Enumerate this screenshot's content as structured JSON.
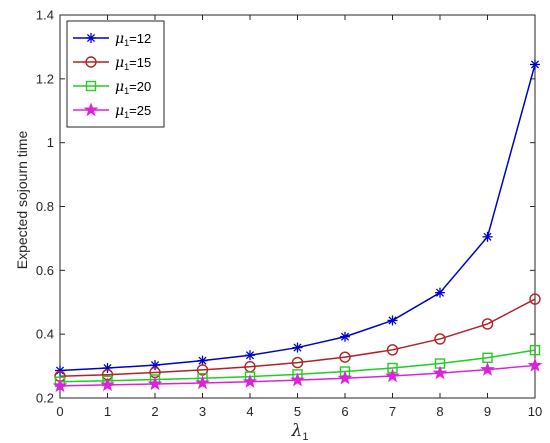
{
  "chart_data": {
    "type": "line",
    "xlabel_symbol": "λ",
    "xlabel_subscript": "1",
    "ylabel": "Expected sojourn time",
    "xlim": [
      0,
      10
    ],
    "ylim": [
      0.2,
      1.4
    ],
    "x_ticks": [
      "0",
      "1",
      "2",
      "3",
      "4",
      "5",
      "6",
      "7",
      "8",
      "9",
      "10"
    ],
    "y_ticks": [
      "0.2",
      "0.4",
      "0.6",
      "0.8",
      "1",
      "1.2",
      "1.4"
    ],
    "grid": false,
    "legend_position": "top-left",
    "x": [
      0,
      1,
      2,
      3,
      4,
      5,
      6,
      7,
      8,
      9,
      10
    ],
    "series": [
      {
        "legend_symbol": "μ",
        "legend_subscript": "1",
        "legend_value": "=12",
        "color": "#0000cc",
        "marker": "asterisk",
        "values": [
          0.286,
          0.294,
          0.303,
          0.317,
          0.334,
          0.358,
          0.392,
          0.443,
          0.53,
          0.705,
          1.245
        ]
      },
      {
        "legend_symbol": "μ",
        "legend_subscript": "1",
        "legend_value": "=15",
        "color": "#b22222",
        "marker": "circle",
        "values": [
          0.268,
          0.273,
          0.28,
          0.288,
          0.298,
          0.311,
          0.328,
          0.351,
          0.385,
          0.432,
          0.51
        ]
      },
      {
        "legend_symbol": "μ",
        "legend_subscript": "1",
        "legend_value": "=20",
        "color": "#22cc22",
        "marker": "square",
        "values": [
          0.251,
          0.254,
          0.258,
          0.262,
          0.267,
          0.274,
          0.283,
          0.294,
          0.308,
          0.326,
          0.35
        ]
      },
      {
        "legend_symbol": "μ",
        "legend_subscript": "1",
        "legend_value": "=25",
        "color": "#dd22dd",
        "marker": "star",
        "values": [
          0.238,
          0.241,
          0.244,
          0.247,
          0.251,
          0.256,
          0.262,
          0.269,
          0.278,
          0.289,
          0.302
        ]
      }
    ]
  }
}
